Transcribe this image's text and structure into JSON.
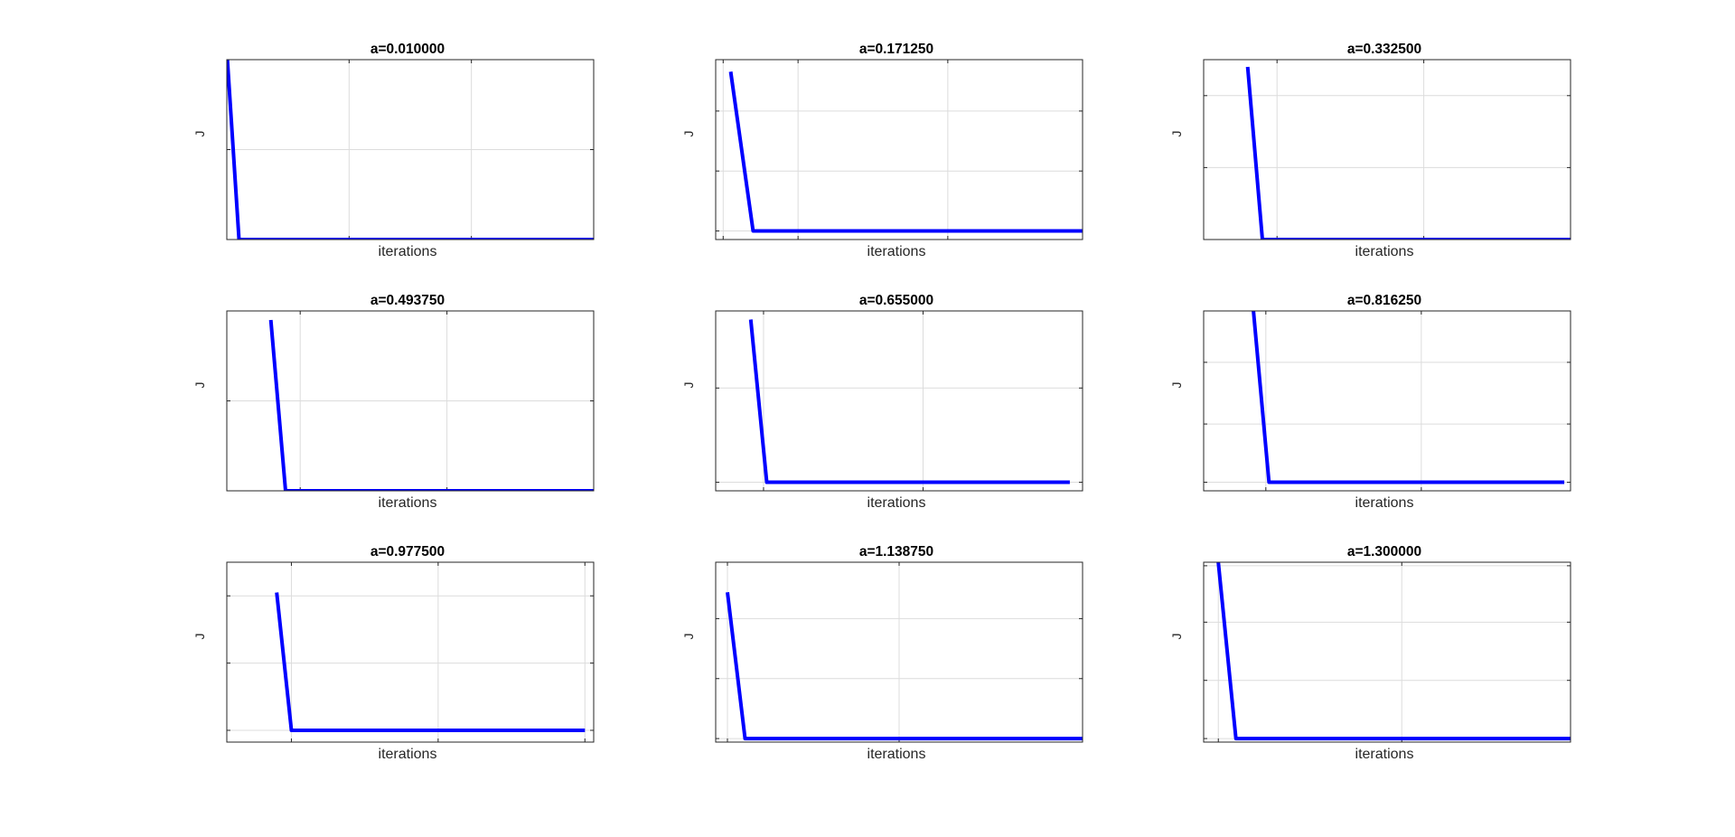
{
  "chart_data": [
    {
      "type": "line",
      "title": "a=0.010000",
      "xlabel": "iterations",
      "ylabel": "J",
      "xlim": [
        0,
        30
      ],
      "ylim": [
        0,
        1
      ],
      "xticks": [
        0,
        10,
        20,
        30
      ],
      "yticks": [
        0,
        0.5,
        1
      ],
      "grid": true,
      "series": [
        {
          "x": [
            0,
            1,
            30
          ],
          "y": [
            1.05,
            0,
            0
          ],
          "color": "#0000ff"
        }
      ]
    },
    {
      "type": "line",
      "title": "a=0.171250",
      "xlabel": "iterations",
      "ylabel": "J",
      "xlim": [
        -0.5,
        24
      ],
      "ylim": [
        -0.05,
        1
      ],
      "xticks": [
        0,
        5,
        15,
        24
      ],
      "yticks": [
        0,
        0.35,
        0.7
      ],
      "grid": true,
      "series": [
        {
          "x": [
            0.5,
            2,
            24
          ],
          "y": [
            0.93,
            0,
            0
          ],
          "color": "#0000ff"
        }
      ]
    },
    {
      "type": "line",
      "title": "a=0.332500",
      "xlabel": "iterations",
      "ylabel": "J",
      "xlim": [
        0,
        25
      ],
      "ylim": [
        0,
        1
      ],
      "xticks": [
        0,
        5,
        15,
        25
      ],
      "yticks": [
        0,
        0.4,
        0.8
      ],
      "grid": true,
      "series": [
        {
          "x": [
            3,
            4,
            25
          ],
          "y": [
            0.96,
            0,
            0
          ],
          "color": "#0000ff"
        }
      ]
    },
    {
      "type": "line",
      "title": "a=0.493750",
      "xlabel": "iterations",
      "ylabel": "J",
      "xlim": [
        0,
        25
      ],
      "ylim": [
        0,
        1
      ],
      "xticks": [
        0,
        5,
        15,
        25
      ],
      "yticks": [
        0,
        0.5,
        1
      ],
      "grid": true,
      "series": [
        {
          "x": [
            3,
            4,
            25
          ],
          "y": [
            0.95,
            0,
            0
          ],
          "color": "#0000ff"
        }
      ]
    },
    {
      "type": "line",
      "title": "a=0.655000",
      "xlabel": "iterations",
      "ylabel": "J",
      "xlim": [
        0,
        23
      ],
      "ylim": [
        -0.05,
        1
      ],
      "xticks": [
        0,
        3,
        13,
        23
      ],
      "yticks": [
        0,
        0.55,
        1
      ],
      "grid": true,
      "series": [
        {
          "x": [
            2.2,
            3.2,
            22.2
          ],
          "y": [
            0.95,
            0,
            0
          ],
          "color": "#0000ff"
        }
      ]
    },
    {
      "type": "line",
      "title": "a=0.816250",
      "xlabel": "iterations",
      "ylabel": "J",
      "xlim": [
        0,
        23.6
      ],
      "ylim": [
        -0.05,
        1
      ],
      "xticks": [
        0,
        4,
        14,
        23.6
      ],
      "yticks": [
        0,
        0.34,
        0.7
      ],
      "grid": true,
      "series": [
        {
          "x": [
            3.2,
            4.2,
            23.2
          ],
          "y": [
            1.0,
            0,
            0
          ],
          "color": "#0000ff"
        }
      ]
    },
    {
      "type": "line",
      "title": "a=0.977500",
      "xlabel": "iterations",
      "ylabel": "J",
      "xlim": [
        0,
        25
      ],
      "ylim": [
        -0.07,
        1
      ],
      "xticks": [
        0,
        4.4,
        14.4,
        24.4
      ],
      "yticks": [
        0,
        0.4,
        0.8
      ],
      "grid": true,
      "series": [
        {
          "x": [
            3.4,
            4.4,
            24.4
          ],
          "y": [
            0.82,
            0,
            0
          ],
          "color": "#0000ff"
        }
      ]
    },
    {
      "type": "line",
      "title": "a=1.138750",
      "xlabel": "iterations",
      "ylabel": "J",
      "xlim": [
        0,
        25
      ],
      "ylim": [
        -0.02,
        1
      ],
      "xticks": [
        0.8,
        12.5,
        25
      ],
      "yticks": [
        0,
        0.34,
        0.68
      ],
      "grid": true,
      "series": [
        {
          "x": [
            0.8,
            2,
            25
          ],
          "y": [
            0.83,
            0,
            0
          ],
          "color": "#0000ff"
        }
      ]
    },
    {
      "type": "line",
      "title": "a=1.300000",
      "xlabel": "iterations",
      "ylabel": "J",
      "xlim": [
        0,
        25
      ],
      "ylim": [
        -0.02,
        1
      ],
      "xticks": [
        1,
        13.5,
        25
      ],
      "yticks": [
        0,
        0.33,
        0.66,
        0.98
      ],
      "grid": true,
      "series": [
        {
          "x": [
            1,
            2.2,
            25
          ],
          "y": [
            1.0,
            0,
            0
          ],
          "color": "#0000ff"
        }
      ]
    }
  ]
}
